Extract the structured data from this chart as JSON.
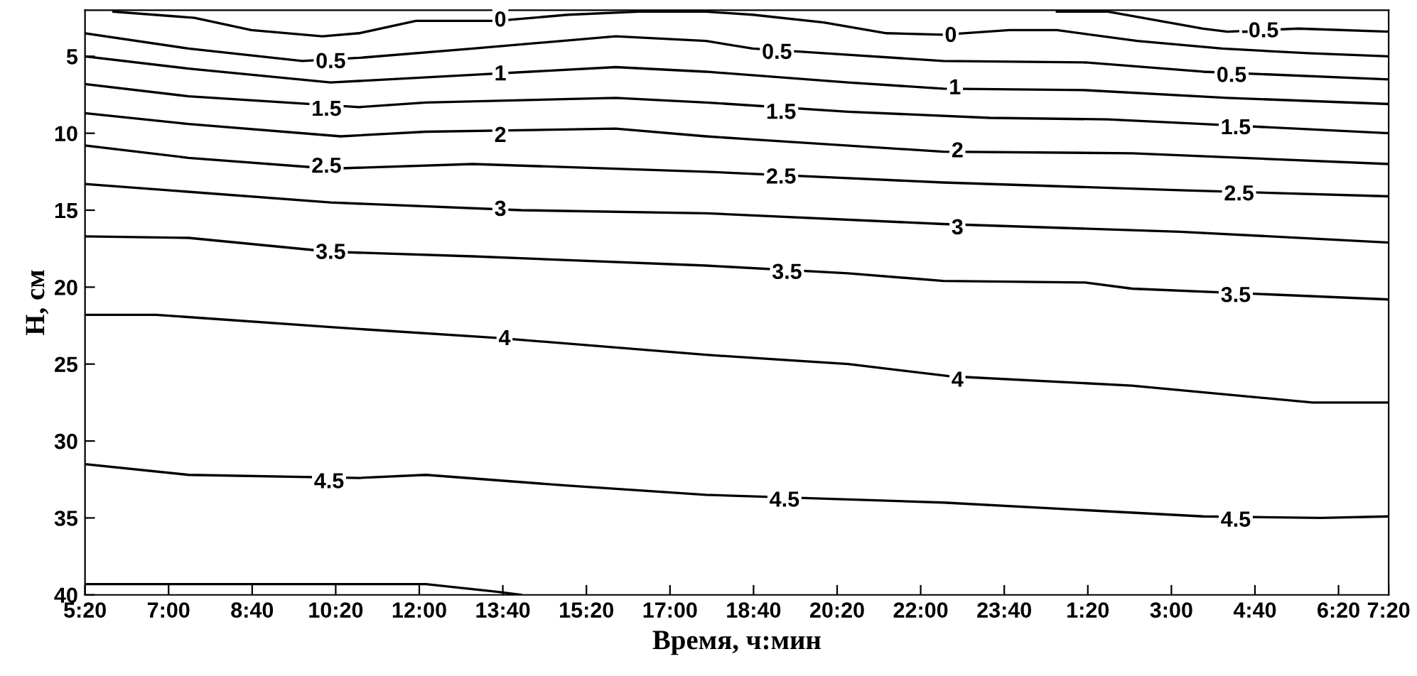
{
  "chart_data": {
    "type": "line",
    "xlabel": "Время, ч:мин",
    "ylabel": "H, см",
    "xlim": [
      "2000-01-01T05:20",
      "2000-01-02T07:20"
    ],
    "ylim": [
      40,
      2
    ],
    "xticks": [
      {
        "value": "2000-01-01T05:20",
        "label": "5:20"
      },
      {
        "value": "2000-01-01T07:00",
        "label": "7:00"
      },
      {
        "value": "2000-01-01T08:40",
        "label": "8:40"
      },
      {
        "value": "2000-01-01T10:20",
        "label": "10:20"
      },
      {
        "value": "2000-01-01T12:00",
        "label": "12:00"
      },
      {
        "value": "2000-01-01T13:40",
        "label": "13:40"
      },
      {
        "value": "2000-01-01T15:20",
        "label": "15:20"
      },
      {
        "value": "2000-01-01T17:00",
        "label": "17:00"
      },
      {
        "value": "2000-01-01T18:40",
        "label": "18:40"
      },
      {
        "value": "2000-01-01T20:20",
        "label": "20:20"
      },
      {
        "value": "2000-01-01T22:00",
        "label": "22:00"
      },
      {
        "value": "2000-01-01T23:40",
        "label": "23:40"
      },
      {
        "value": "2000-01-02T01:20",
        "label": "1:20"
      },
      {
        "value": "2000-01-02T03:00",
        "label": "3:00"
      },
      {
        "value": "2000-01-02T04:40",
        "label": "4:40"
      },
      {
        "value": "2000-01-02T06:20",
        "label": "6:20"
      },
      {
        "value": "2000-01-02T07:20",
        "label": "7:20"
      }
    ],
    "yticks": [
      5,
      10,
      15,
      20,
      25,
      30,
      35,
      40
    ],
    "grid": false,
    "legend": false,
    "marker": "none",
    "line_style": "solid",
    "series": [
      {
        "color": "#000000",
        "x": [
          "2000-01-02T00:43",
          "2000-01-02T01:44",
          "2000-01-02T03:38",
          "2000-01-02T04:07",
          "2000-01-02T05:32",
          "2000-01-02T07:20"
        ],
        "values": [
          2.1,
          2.1,
          3.2,
          3.4,
          3.2,
          3.4
        ]
      },
      {
        "color": "#000000",
        "x": [
          "2000-01-01T05:54",
          "2000-01-01T07:31",
          "2000-01-01T08:39",
          "2000-01-01T10:04",
          "2000-01-01T10:48",
          "2000-01-01T11:56",
          "2000-01-01T13:33",
          "2000-01-01T14:58",
          "2000-01-01T16:23",
          "2000-01-01T17:43",
          "2000-01-01T18:39",
          "2000-01-01T20:04",
          "2000-01-01T21:19",
          "2000-01-01T22:27",
          "2000-01-01T23:46",
          "2000-01-02T00:43",
          "2000-01-02T02:19",
          "2000-01-02T04:01",
          "2000-01-02T05:43",
          "2000-01-02T07:20"
        ],
        "values": [
          2.1,
          2.5,
          3.3,
          3.7,
          3.5,
          2.7,
          2.7,
          2.3,
          2.1,
          2.1,
          2.3,
          2.8,
          3.5,
          3.6,
          3.3,
          3.3,
          4.0,
          4.5,
          4.8,
          5.0
        ]
      },
      {
        "color": "#000000",
        "x": [
          "2000-01-01T05:20",
          "2000-01-01T07:24",
          "2000-01-01T09:40",
          "2000-01-01T10:48",
          "2000-01-01T13:04",
          "2000-01-01T15:55",
          "2000-01-01T17:43",
          "2000-01-01T18:39",
          "2000-01-01T20:33",
          "2000-01-01T22:27",
          "2000-01-02T01:17",
          "2000-01-02T03:38",
          "2000-01-02T07:20"
        ],
        "values": [
          3.5,
          4.5,
          5.3,
          5.1,
          4.5,
          3.7,
          4.0,
          4.5,
          4.9,
          5.3,
          5.4,
          6.0,
          6.5
        ]
      },
      {
        "color": "#000000",
        "x": [
          "2000-01-01T05:20",
          "2000-01-01T07:24",
          "2000-01-01T10:14",
          "2000-01-01T13:04",
          "2000-01-01T15:55",
          "2000-01-01T17:43",
          "2000-01-01T20:33",
          "2000-01-01T22:27",
          "2000-01-02T01:17",
          "2000-01-02T04:07",
          "2000-01-02T07:20"
        ],
        "values": [
          5.0,
          5.8,
          6.7,
          6.2,
          5.7,
          6.0,
          6.7,
          7.1,
          7.2,
          7.7,
          8.1
        ]
      },
      {
        "color": "#000000",
        "x": [
          "2000-01-01T05:20",
          "2000-01-01T07:24",
          "2000-01-01T10:48",
          "2000-01-01T12:08",
          "2000-01-01T15:55",
          "2000-01-01T17:43",
          "2000-01-01T20:33",
          "2000-01-01T23:23",
          "2000-01-02T01:44",
          "2000-01-02T03:38",
          "2000-01-02T07:20"
        ],
        "values": [
          6.8,
          7.6,
          8.3,
          8.0,
          7.7,
          8.0,
          8.6,
          9.0,
          9.1,
          9.4,
          10.0
        ]
      },
      {
        "color": "#000000",
        "x": [
          "2000-01-01T05:20",
          "2000-01-01T07:24",
          "2000-01-01T10:26",
          "2000-01-01T12:08",
          "2000-01-01T15:55",
          "2000-01-01T17:43",
          "2000-01-01T18:39",
          "2000-01-01T22:27",
          "2000-01-02T02:13",
          "2000-01-02T07:20"
        ],
        "values": [
          8.7,
          9.4,
          10.2,
          9.9,
          9.7,
          10.2,
          10.4,
          11.2,
          11.3,
          12.0
        ]
      },
      {
        "color": "#000000",
        "x": [
          "2000-01-01T05:20",
          "2000-01-01T07:24",
          "2000-01-01T10:14",
          "2000-01-01T13:04",
          "2000-01-01T17:43",
          "2000-01-01T22:27",
          "2000-01-02T03:10",
          "2000-01-02T07:20"
        ],
        "values": [
          10.8,
          11.6,
          12.3,
          12.0,
          12.5,
          13.2,
          13.7,
          14.1
        ]
      },
      {
        "color": "#000000",
        "x": [
          "2000-01-01T05:20",
          "2000-01-01T10:14",
          "2000-01-01T14:02",
          "2000-01-01T17:43",
          "2000-01-01T22:27",
          "2000-01-02T03:10",
          "2000-01-02T07:20"
        ],
        "values": [
          13.3,
          14.5,
          15.0,
          15.2,
          15.9,
          16.4,
          17.1
        ]
      },
      {
        "color": "#000000",
        "x": [
          "2000-01-01T05:20",
          "2000-01-01T07:24",
          "2000-01-01T10:14",
          "2000-01-01T13:04",
          "2000-01-01T17:43",
          "2000-01-01T20:33",
          "2000-01-01T22:27",
          "2000-01-02T01:17",
          "2000-01-02T02:13",
          "2000-01-02T07:20"
        ],
        "values": [
          16.7,
          16.8,
          17.7,
          18.0,
          18.6,
          19.1,
          19.6,
          19.7,
          20.1,
          20.8
        ]
      },
      {
        "color": "#000000",
        "x": [
          "2000-01-01T05:20",
          "2000-01-01T06:45",
          "2000-01-01T10:14",
          "2000-01-01T13:33",
          "2000-01-01T17:43",
          "2000-01-01T20:33",
          "2000-01-01T22:37",
          "2000-01-02T02:13",
          "2000-01-02T05:49",
          "2000-01-02T07:20"
        ],
        "values": [
          21.8,
          21.8,
          22.6,
          23.3,
          24.4,
          25.0,
          25.8,
          26.4,
          27.5,
          27.5
        ]
      },
      {
        "color": "#000000",
        "x": [
          "2000-01-01T05:20",
          "2000-01-01T07:24",
          "2000-01-01T10:48",
          "2000-01-01T12:08",
          "2000-01-01T14:58",
          "2000-01-01T17:43",
          "2000-01-01T22:27",
          "2000-01-02T03:38",
          "2000-01-02T05:59",
          "2000-01-02T07:20"
        ],
        "values": [
          31.5,
          32.2,
          32.4,
          32.2,
          32.9,
          33.5,
          34.0,
          34.9,
          35.0,
          34.9
        ]
      },
      {
        "color": "#000000",
        "x": [
          "2000-01-01T05:20",
          "2000-01-01T10:43",
          "2000-01-01T12:08",
          "2000-01-01T13:33",
          "2000-01-01T14:02"
        ],
        "values": [
          39.3,
          39.3,
          39.3,
          39.8,
          40.0
        ]
      }
    ],
    "annotations": [
      {
        "text": "0",
        "x": "2000-01-01T13:37",
        "y": 2.7
      },
      {
        "text": "0",
        "x": "2000-01-01T22:36",
        "y": 3.7
      },
      {
        "text": "-0.5",
        "x": "2000-01-02T04:46",
        "y": 3.4
      },
      {
        "text": "0.5",
        "x": "2000-01-01T10:14",
        "y": 5.4
      },
      {
        "text": "0.5",
        "x": "2000-01-01T19:08",
        "y": 4.8
      },
      {
        "text": "0.5",
        "x": "2000-01-02T04:12",
        "y": 6.3
      },
      {
        "text": "1",
        "x": "2000-01-01T13:37",
        "y": 6.2
      },
      {
        "text": "1",
        "x": "2000-01-01T22:41",
        "y": 7.1
      },
      {
        "text": "1.5",
        "x": "2000-01-01T10:09",
        "y": 8.5
      },
      {
        "text": "1.5",
        "x": "2000-01-01T19:13",
        "y": 8.7
      },
      {
        "text": "1.5",
        "x": "2000-01-02T04:17",
        "y": 9.7
      },
      {
        "text": "2",
        "x": "2000-01-01T13:37",
        "y": 10.2
      },
      {
        "text": "2",
        "x": "2000-01-01T22:44",
        "y": 11.2
      },
      {
        "text": "2.5",
        "x": "2000-01-01T10:09",
        "y": 12.2
      },
      {
        "text": "2.5",
        "x": "2000-01-01T19:13",
        "y": 12.9
      },
      {
        "text": "2.5",
        "x": "2000-01-02T04:21",
        "y": 14.0
      },
      {
        "text": "3",
        "x": "2000-01-01T13:37",
        "y": 15.0
      },
      {
        "text": "3",
        "x": "2000-01-01T22:44",
        "y": 16.2
      },
      {
        "text": "3.5",
        "x": "2000-01-01T10:14",
        "y": 17.8
      },
      {
        "text": "3.5",
        "x": "2000-01-01T19:20",
        "y": 19.1
      },
      {
        "text": "3.5",
        "x": "2000-01-02T04:17",
        "y": 20.6
      },
      {
        "text": "4",
        "x": "2000-01-01T13:42",
        "y": 23.4
      },
      {
        "text": "4",
        "x": "2000-01-01T22:44",
        "y": 26.1
      },
      {
        "text": "4.5",
        "x": "2000-01-01T10:12",
        "y": 32.7
      },
      {
        "text": "4.5",
        "x": "2000-01-01T19:17",
        "y": 33.9
      },
      {
        "text": "4.5",
        "x": "2000-01-02T04:17",
        "y": 35.2
      }
    ]
  }
}
